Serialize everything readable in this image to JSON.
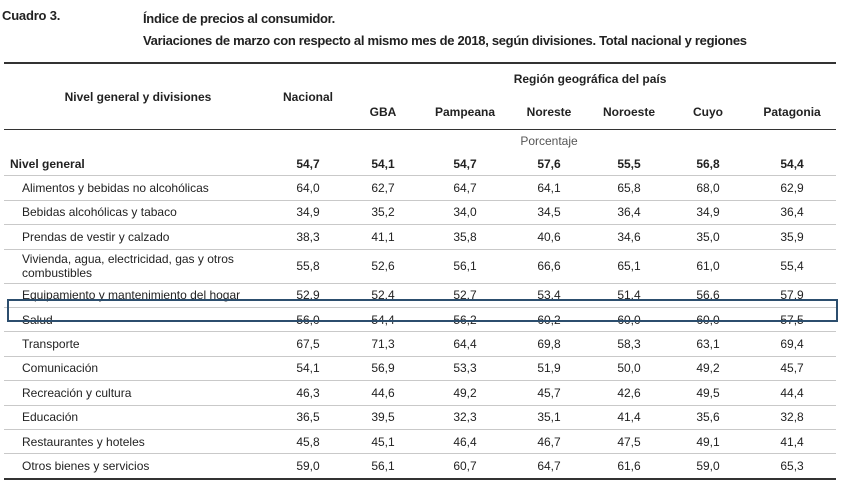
{
  "cuadro": "Cuadro 3.",
  "title_line1": "Índice de precios al consumidor.",
  "title_line2": "Variaciones de marzo con respecto al mismo mes de 2018, según divisiones. Total nacional y regiones",
  "header": {
    "nivel": "Nivel general y divisiones",
    "nacional": "Nacional",
    "region": "Región geográfica del país",
    "regions": [
      "GBA",
      "Pampeana",
      "Noreste",
      "Noroeste",
      "Cuyo",
      "Patagonia"
    ]
  },
  "unit": "Porcentaje",
  "rows": [
    {
      "label": "Nivel general",
      "values": [
        "54,7",
        "54,1",
        "54,7",
        "57,6",
        "55,5",
        "56,8",
        "54,4"
      ]
    },
    {
      "label": "Alimentos y bebidas no alcohólicas",
      "values": [
        "64,0",
        "62,7",
        "64,7",
        "64,1",
        "65,8",
        "68,0",
        "62,9"
      ]
    },
    {
      "label": "Bebidas alcohólicas y tabaco",
      "values": [
        "34,9",
        "35,2",
        "34,0",
        "34,5",
        "36,4",
        "34,9",
        "36,4"
      ]
    },
    {
      "label": "Prendas de vestir y calzado",
      "values": [
        "38,3",
        "41,1",
        "35,8",
        "40,6",
        "34,6",
        "35,0",
        "35,9"
      ]
    },
    {
      "label": "Vivienda, agua, electricidad, gas y otros combustibles",
      "values": [
        "55,8",
        "52,6",
        "56,1",
        "66,6",
        "65,1",
        "61,0",
        "55,4"
      ]
    },
    {
      "label": "Equipamiento y mantenimiento del hogar",
      "values": [
        "52,9",
        "52,4",
        "52,7",
        "53,4",
        "51,4",
        "56,6",
        "57,9"
      ]
    },
    {
      "label": "Salud",
      "values": [
        "56,0",
        "54,4",
        "56,2",
        "60,2",
        "60,0",
        "60,0",
        "57,5"
      ]
    },
    {
      "label": "Transporte",
      "values": [
        "67,5",
        "71,3",
        "64,4",
        "69,8",
        "58,3",
        "63,1",
        "69,4"
      ]
    },
    {
      "label": "Comunicación",
      "values": [
        "54,1",
        "56,9",
        "53,3",
        "51,9",
        "50,0",
        "49,2",
        "45,7"
      ]
    },
    {
      "label": "Recreación y cultura",
      "values": [
        "46,3",
        "44,6",
        "49,2",
        "45,7",
        "42,6",
        "49,5",
        "44,4"
      ]
    },
    {
      "label": "Educación",
      "values": [
        "36,5",
        "39,5",
        "32,3",
        "35,1",
        "41,4",
        "35,6",
        "32,8"
      ]
    },
    {
      "label": "Restaurantes y hoteles",
      "values": [
        "45,8",
        "45,1",
        "46,4",
        "46,7",
        "47,5",
        "49,1",
        "41,4"
      ]
    },
    {
      "label": "Otros bienes y servicios",
      "values": [
        "59,0",
        "56,1",
        "60,7",
        "64,7",
        "61,6",
        "59,0",
        "65,3"
      ]
    }
  ],
  "highlight_color": "#2c4e6e"
}
